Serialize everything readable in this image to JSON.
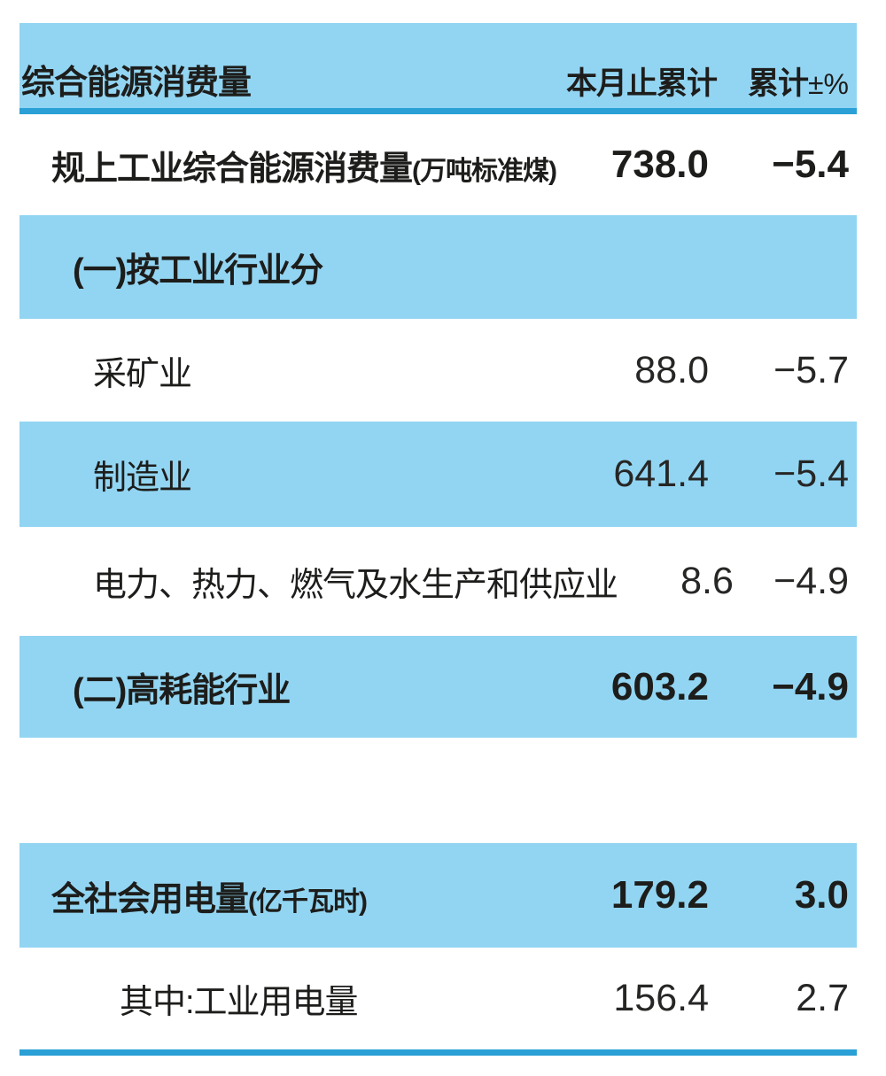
{
  "header": {
    "label": "综合能源消费量",
    "col1": "本月止累计",
    "col2": "累计",
    "col2_suffix": "±%"
  },
  "rows": [
    {
      "label": "规上工业综合能源消费量",
      "unit": "(万吨标准煤)",
      "value1": "738.0",
      "value2": "−5.4"
    },
    {
      "label": "(一)按工业行业分",
      "unit": "",
      "value1": "",
      "value2": ""
    },
    {
      "label": "采矿业",
      "unit": "",
      "value1": "88.0",
      "value2": "−5.7"
    },
    {
      "label": "制造业",
      "unit": "",
      "value1": "641.4",
      "value2": "−5.4"
    },
    {
      "label": "电力、热力、燃气及水生产和供应业",
      "unit": "",
      "value1": "8.6",
      "value2": "−4.9"
    },
    {
      "label": "(二)高耗能行业",
      "unit": "",
      "value1": "603.2",
      "value2": "−4.9"
    },
    {
      "label": "全社会用电量",
      "unit": "(亿千瓦时)",
      "value1": "179.2",
      "value2": "3.0"
    },
    {
      "label": "其中:工业用电量",
      "unit": "",
      "value1": "156.4",
      "value2": "2.7"
    }
  ],
  "colors": {
    "band_blue": "#92d5f2",
    "rule_blue": "#2aa0d6",
    "text_dark": "#1d1d1b"
  }
}
